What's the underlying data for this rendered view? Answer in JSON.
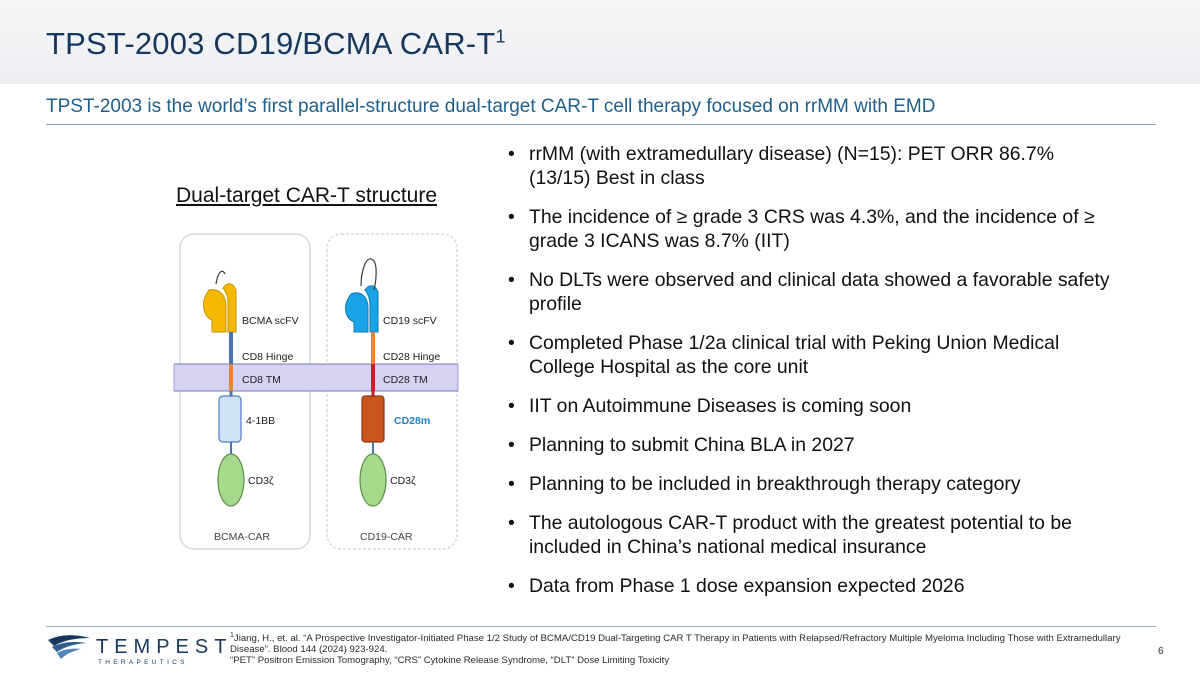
{
  "slide": {
    "title_main": "TPST-2003 CD19/BCMA CAR-T",
    "title_sup": "1",
    "subtitle": "TPST-2003 is the world’s first parallel-structure dual-target CAR-T cell therapy focused on rrMM with EMD",
    "page_number": "6"
  },
  "figure": {
    "title": "Dual-target CAR-T structure",
    "left_car": {
      "scfv": "BCMA scFV",
      "hinge": "CD8 Hinge",
      "tm": "CD8 TM",
      "costim": "4-1BB",
      "signal": "CD3ζ",
      "name": "BCMA-CAR",
      "scfv_color": "#f5b800"
    },
    "right_car": {
      "scfv": "CD19 scFV",
      "hinge": "CD28 Hinge",
      "tm": "CD28 TM",
      "costim": "CD28m",
      "signal": "CD3ζ",
      "name": "CD19-CAR",
      "scfv_color": "#1aa3e8"
    }
  },
  "bullets": [
    "rrMM (with extramedullary disease) (N=15): PET ORR 86.7% (13/15) Best in class",
    "The incidence of ≥ grade 3 CRS was 4.3%, and the incidence of ≥ grade 3 ICANS was 8.7% (IIT)",
    "No DLTs were observed and clinical data showed a favorable safety profile",
    "Completed Phase 1/2a clinical trial with Peking Union Medical College Hospital as the core unit",
    "IIT on Autoimmune Diseases is coming soon",
    "Planning to submit China BLA in 2027",
    "Planning to be included in breakthrough therapy category",
    "The autologous CAR-T product with the greatest potential to be included in China’s national medical insurance",
    "Data from Phase 1 dose expansion expected 2026"
  ],
  "logo": {
    "wordmark": "TEMPEST",
    "tagline": "THERAPEUTICS",
    "icon": "tempest-wings-logo"
  },
  "footnotes": {
    "ref_marker": "1",
    "reference": "Jiang, H., et. al. “A Prospective Investigator-Initiated Phase 1/2 Study of BCMA/CD19 Dual-Targeting CAR T Therapy in Patients with Relapsed/Refractory Multiple Myeloma Including Those with Extramedullary Disease”. Blood 144 (2024) 923-924.",
    "abbreviations": "“PET” Positron Emission Tomography, “CRS” Cytokine Release Syndrome, “DLT” Dose Limiting Toxicity"
  }
}
